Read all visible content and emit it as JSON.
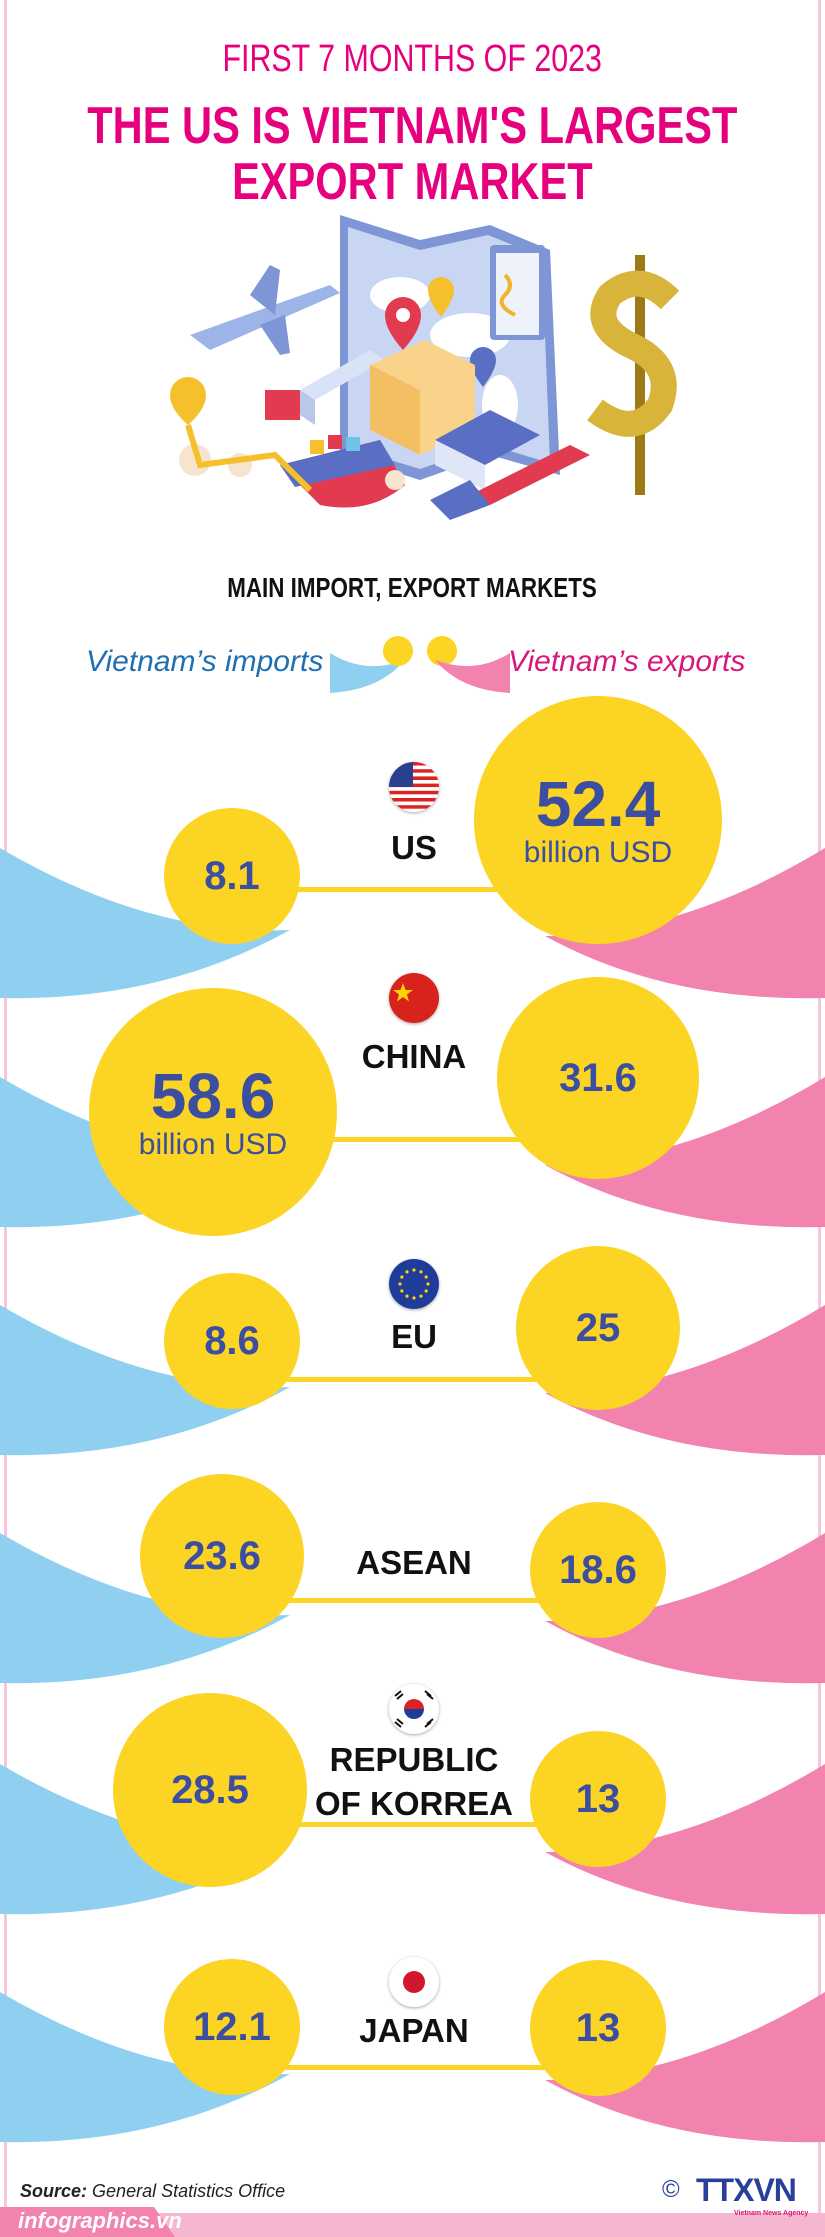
{
  "header": {
    "period": "FIRST 7 MONTHS OF 2023",
    "title_line1": "THE US IS VIETNAM'S LARGEST",
    "title_line2": "EXPORT MARKET"
  },
  "subheading": "MAIN IMPORT, EXPORT MARKETS",
  "legend": {
    "imports": "Vietnam’s imports",
    "exports": "Vietnam’s exports"
  },
  "colors": {
    "title": "#e6007e",
    "bubble": "#fcd423",
    "imports": "#8fd0f0",
    "exports": "#f283ae",
    "numbers": "#3b4ea0"
  },
  "markets": [
    {
      "name": "US",
      "flag": "us-flag",
      "imports": "8.1",
      "exports": "52.4",
      "imports_unit": null,
      "exports_unit": "billion USD"
    },
    {
      "name": "CHINA",
      "flag": "china-flag",
      "imports": "58.6",
      "exports": "31.6",
      "imports_unit": "billion USD",
      "exports_unit": null
    },
    {
      "name": "EU",
      "flag": "eu-flag",
      "imports": "8.6",
      "exports": "25",
      "imports_unit": null,
      "exports_unit": null
    },
    {
      "name": "ASEAN",
      "flag": null,
      "imports": "23.6",
      "exports": "18.6",
      "imports_unit": null,
      "exports_unit": null
    },
    {
      "name": "REPUBLIC OF KORREA",
      "name_lines": [
        "REPUBLIC",
        "OF KORREA"
      ],
      "flag": "korea-flag",
      "imports": "28.5",
      "exports": "13",
      "imports_unit": null,
      "exports_unit": null
    },
    {
      "name": "JAPAN",
      "flag": "japan-flag",
      "imports": "12.1",
      "exports": "13",
      "imports_unit": null,
      "exports_unit": null
    }
  ],
  "footer": {
    "source_label": "Source:",
    "source": "General Statistics Office",
    "site": "infographics.vn",
    "copyright": "©",
    "logo": "TTXVN",
    "logo_sub": "Vietnam News Agency"
  }
}
